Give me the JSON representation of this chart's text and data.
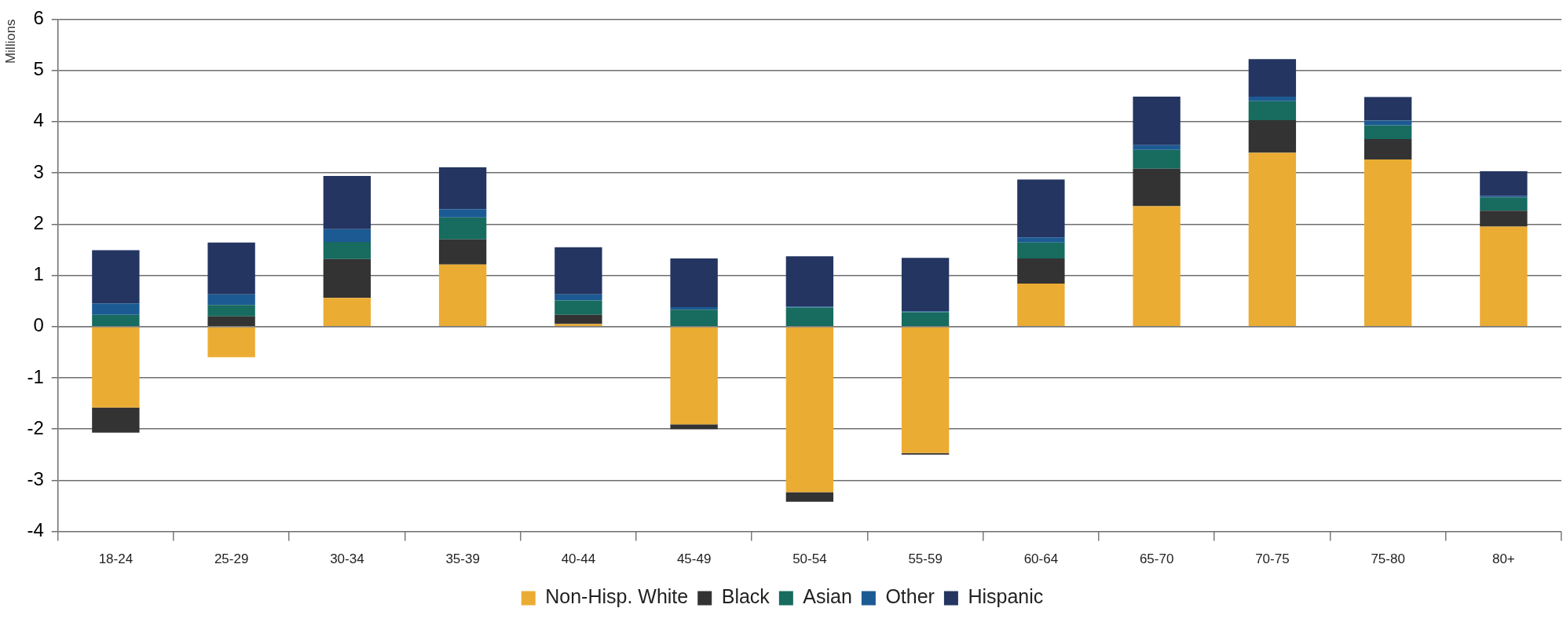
{
  "chart_data": {
    "type": "bar",
    "stacked": true,
    "ylabel": "Millions",
    "legend": "bottom",
    "grid": "y",
    "categories": [
      "18-24",
      "25-29",
      "30-34",
      "35-39",
      "40-44",
      "45-49",
      "50-54",
      "55-59",
      "60-64",
      "65-70",
      "70-75",
      "75-80",
      "80+"
    ],
    "ylim": [
      -4,
      6
    ],
    "yticks": [
      -4,
      -3,
      -2,
      -1,
      0,
      1,
      2,
      3,
      4,
      5,
      6
    ],
    "series": [
      {
        "name": "Non-Hisp. White",
        "color": "#ebac33",
        "values": [
          -1.58,
          -0.6,
          0.56,
          1.21,
          0.05,
          -1.91,
          -3.23,
          -2.47,
          0.84,
          2.35,
          3.39,
          3.26,
          1.95
        ]
      },
      {
        "name": "Black",
        "color": "#333333",
        "values": [
          -0.49,
          0.2,
          0.76,
          0.49,
          0.18,
          -0.09,
          -0.19,
          -0.03,
          0.49,
          0.73,
          0.64,
          0.4,
          0.31
        ]
      },
      {
        "name": "Asian",
        "color": "#176b5f",
        "values": [
          0.23,
          0.22,
          0.33,
          0.43,
          0.28,
          0.33,
          0.37,
          0.28,
          0.31,
          0.37,
          0.37,
          0.27,
          0.26
        ]
      },
      {
        "name": "Other",
        "color": "#1c5a94",
        "values": [
          0.22,
          0.21,
          0.25,
          0.16,
          0.12,
          0.05,
          0.02,
          0.02,
          0.1,
          0.09,
          0.09,
          0.09,
          0.03
        ]
      },
      {
        "name": "Hispanic",
        "color": "#243561",
        "values": [
          1.04,
          1.01,
          1.04,
          0.82,
          0.92,
          0.95,
          0.98,
          1.04,
          1.13,
          0.95,
          0.73,
          0.46,
          0.48
        ]
      }
    ]
  }
}
